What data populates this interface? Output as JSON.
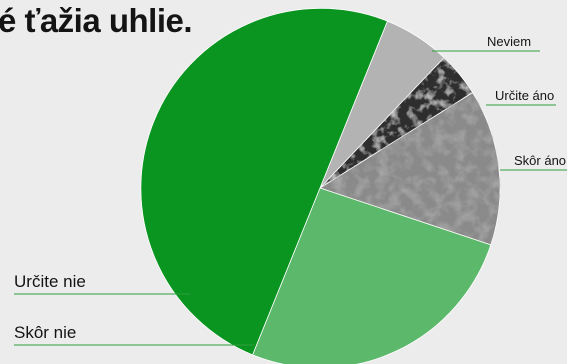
{
  "chart_data": {
    "type": "pie",
    "title": "é ťažia uhlie.",
    "slices": [
      {
        "label": "Neviem",
        "value": 6,
        "color": "#b3b3b3",
        "pattern": "none"
      },
      {
        "label": "Určite áno",
        "value": 4,
        "color": "#2e2e2e",
        "pattern": "texture-dark"
      },
      {
        "label": "Skôr áno",
        "value": 14,
        "color": "#8a8a8a",
        "pattern": "texture-light"
      },
      {
        "label": "Skôr nie",
        "value": 26,
        "color": "#5cb86b",
        "pattern": "none"
      },
      {
        "label": "Určite nie",
        "value": 50,
        "color": "#0a9420",
        "pattern": "none"
      }
    ],
    "start_angle_deg": 22,
    "direction": "clockwise",
    "legend_placement": "callout labels with green leader lines",
    "leader_line_color": "#2e9e3e"
  }
}
